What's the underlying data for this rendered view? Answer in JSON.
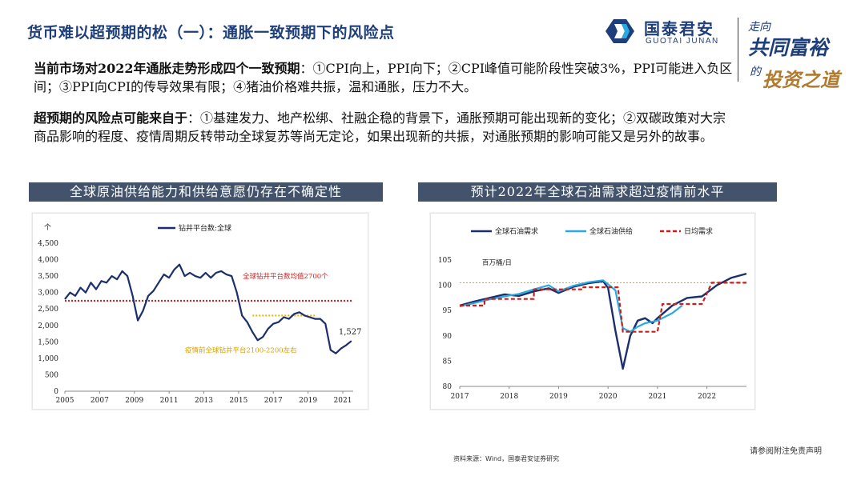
{
  "header": {
    "title": "货币难以超预期的松（一）：通胀一致预期下的风险点",
    "logo_cn": "国泰君安",
    "logo_en": "GUOTAI JUNAN",
    "slogan_line1": "走向",
    "slogan_line2": "共同富裕",
    "slogan_line3": "的",
    "slogan_line4": "投资之道"
  },
  "body": {
    "para1_lead": "当前市场对2022年通胀走势形成四个一致预期",
    "para1_text": "：①CPI向上，PPI向下；②CPI峰值可能阶段性突破3%，PPI可能进入负区间；③PPI向CPI的传导效果有限；④猪油价格难共振，温和通胀，压力不大。",
    "para2_lead": "超预期的风险点可能来自于",
    "para2_text": "：①基建发力、地产松绑、社融企稳的背景下，通胀预期可能出现新的变化；②双碳政策对大宗商品影响的程度、疫情周期反转带动全球复苏等尚无定论，如果出现新的共振，对通胀预期的影响可能又是另外的故事。"
  },
  "sections": {
    "left_title": "全球原油供给能力和供给意愿仍存在不确定性",
    "right_title": "预计2022年全球石油需求超过疫情前水平"
  },
  "footer": {
    "disclaimer": "请参阅附注免责声明",
    "source": "资料来源：Wind，国泰君安证券研究"
  },
  "colors": {
    "brand": "#1f3f7a",
    "header_bar": "#43536b",
    "series_dark": "#1a2f6b",
    "series_light": "#29a9e1",
    "red_dotted": "#d62020",
    "orange_dotted": "#f0b400",
    "red_dashed": "#c81e1e"
  },
  "chart_data": [
    {
      "type": "line",
      "unit": "个",
      "ylim": [
        0,
        4500
      ],
      "yticks": [
        "0",
        "500",
        "1,000",
        "1,500",
        "2,000",
        "2,500",
        "3,000",
        "3,500",
        "4,000",
        "4,500"
      ],
      "xlim": [
        2005,
        2021.6
      ],
      "xticks": [
        "2005",
        "2007",
        "2009",
        "2011",
        "2013",
        "2015",
        "2017",
        "2019",
        "2021"
      ],
      "legend_position": "top",
      "series": [
        {
          "name": "钻井平台数:全球",
          "x": [
            2005.0,
            2005.3,
            2005.6,
            2005.9,
            2006.2,
            2006.5,
            2006.8,
            2007.1,
            2007.4,
            2007.7,
            2008.0,
            2008.3,
            2008.6,
            2008.9,
            2009.2,
            2009.5,
            2009.8,
            2010.1,
            2010.4,
            2010.7,
            2011.0,
            2011.3,
            2011.6,
            2011.9,
            2012.2,
            2012.5,
            2012.8,
            2013.1,
            2013.4,
            2013.7,
            2014.0,
            2014.3,
            2014.6,
            2014.9,
            2015.2,
            2015.5,
            2015.8,
            2016.1,
            2016.4,
            2016.7,
            2017.0,
            2017.3,
            2017.6,
            2017.9,
            2018.2,
            2018.5,
            2018.8,
            2019.1,
            2019.4,
            2019.7,
            2020.0,
            2020.3,
            2020.6,
            2020.9,
            2021.2,
            2021.5
          ],
          "values": [
            2800,
            3000,
            2900,
            3150,
            3000,
            3300,
            3100,
            3350,
            3300,
            3500,
            3400,
            3650,
            3500,
            2900,
            2150,
            2450,
            2900,
            3050,
            3300,
            3550,
            3450,
            3700,
            3850,
            3500,
            3600,
            3500,
            3450,
            3600,
            3450,
            3600,
            3650,
            3550,
            3500,
            3000,
            2300,
            2100,
            1800,
            1550,
            1650,
            1900,
            2050,
            2100,
            2250,
            2200,
            2350,
            2400,
            2300,
            2250,
            2200,
            2200,
            2050,
            1250,
            1150,
            1300,
            1400,
            1527
          ]
        }
      ],
      "reference_lines": [
        {
          "label": "全球钻井平台数均值2700个",
          "y": 2750,
          "x_from": 2005,
          "x_to": 2021.6
        },
        {
          "label": "疫情前全球钻井平台2100-2200左右",
          "y": 2300,
          "x_from": 2015.8,
          "x_to": 2019.5
        }
      ],
      "annotations": [
        {
          "text": "1,527",
          "x": 2021.5,
          "y": 1527
        }
      ]
    },
    {
      "type": "line",
      "unit": "百万桶/日",
      "ylim": [
        80,
        105
      ],
      "yticks": [
        "80",
        "85",
        "90",
        "95",
        "100",
        "105"
      ],
      "xlim": [
        2017,
        2022.8
      ],
      "xticks": [
        "2017",
        "2018",
        "2019",
        "2020",
        "2021",
        "2022"
      ],
      "legend_position": "top",
      "reference_level": 100.5,
      "series": [
        {
          "name": "全球石油需求",
          "x": [
            2017.0,
            2017.3,
            2017.6,
            2017.9,
            2018.2,
            2018.5,
            2018.8,
            2019.0,
            2019.3,
            2019.6,
            2019.9,
            2020.0,
            2020.15,
            2020.3,
            2020.45,
            2020.6,
            2020.75,
            2020.9,
            2021.0,
            2021.3,
            2021.6,
            2021.9,
            2022.2,
            2022.5,
            2022.8
          ],
          "values": [
            96.0,
            96.8,
            97.5,
            98.2,
            97.9,
            98.8,
            99.4,
            98.5,
            99.7,
            100.4,
            100.8,
            99.5,
            91.0,
            83.5,
            90.0,
            93.0,
            93.5,
            92.5,
            93.5,
            96.0,
            97.5,
            97.8,
            100.0,
            101.5,
            102.3
          ]
        },
        {
          "name": "全球石油供给",
          "x": [
            2017.0,
            2017.3,
            2017.6,
            2017.9,
            2018.2,
            2018.5,
            2018.8,
            2019.0,
            2019.3,
            2019.6,
            2019.9,
            2020.0,
            2020.15,
            2020.3,
            2020.45,
            2020.6,
            2020.75,
            2020.9,
            2021.0,
            2021.3,
            2021.5
          ],
          "values": [
            95.8,
            96.5,
            97.2,
            97.8,
            98.3,
            99.2,
            100.0,
            98.8,
            99.9,
            100.6,
            101.0,
            100.2,
            99.0,
            91.5,
            90.8,
            91.8,
            92.5,
            92.8,
            93.0,
            94.5,
            96.0
          ]
        },
        {
          "name": "日均需求",
          "x": [
            2017.0,
            2017.5,
            2017.5,
            2018.0,
            2018.5,
            2018.5,
            2019.0,
            2019.5,
            2019.5,
            2020.0,
            2020.2,
            2020.3,
            2020.3,
            2020.8,
            2021.0,
            2021.1,
            2021.1,
            2021.6,
            2021.9,
            2022.1,
            2022.1,
            2022.8
          ],
          "values": [
            96.0,
            96.0,
            97.3,
            97.3,
            97.3,
            99.2,
            99.2,
            99.2,
            99.6,
            99.6,
            99.6,
            90.8,
            90.8,
            90.8,
            90.8,
            96.3,
            96.3,
            96.3,
            96.3,
            100.5,
            100.5,
            100.5
          ]
        }
      ]
    }
  ]
}
